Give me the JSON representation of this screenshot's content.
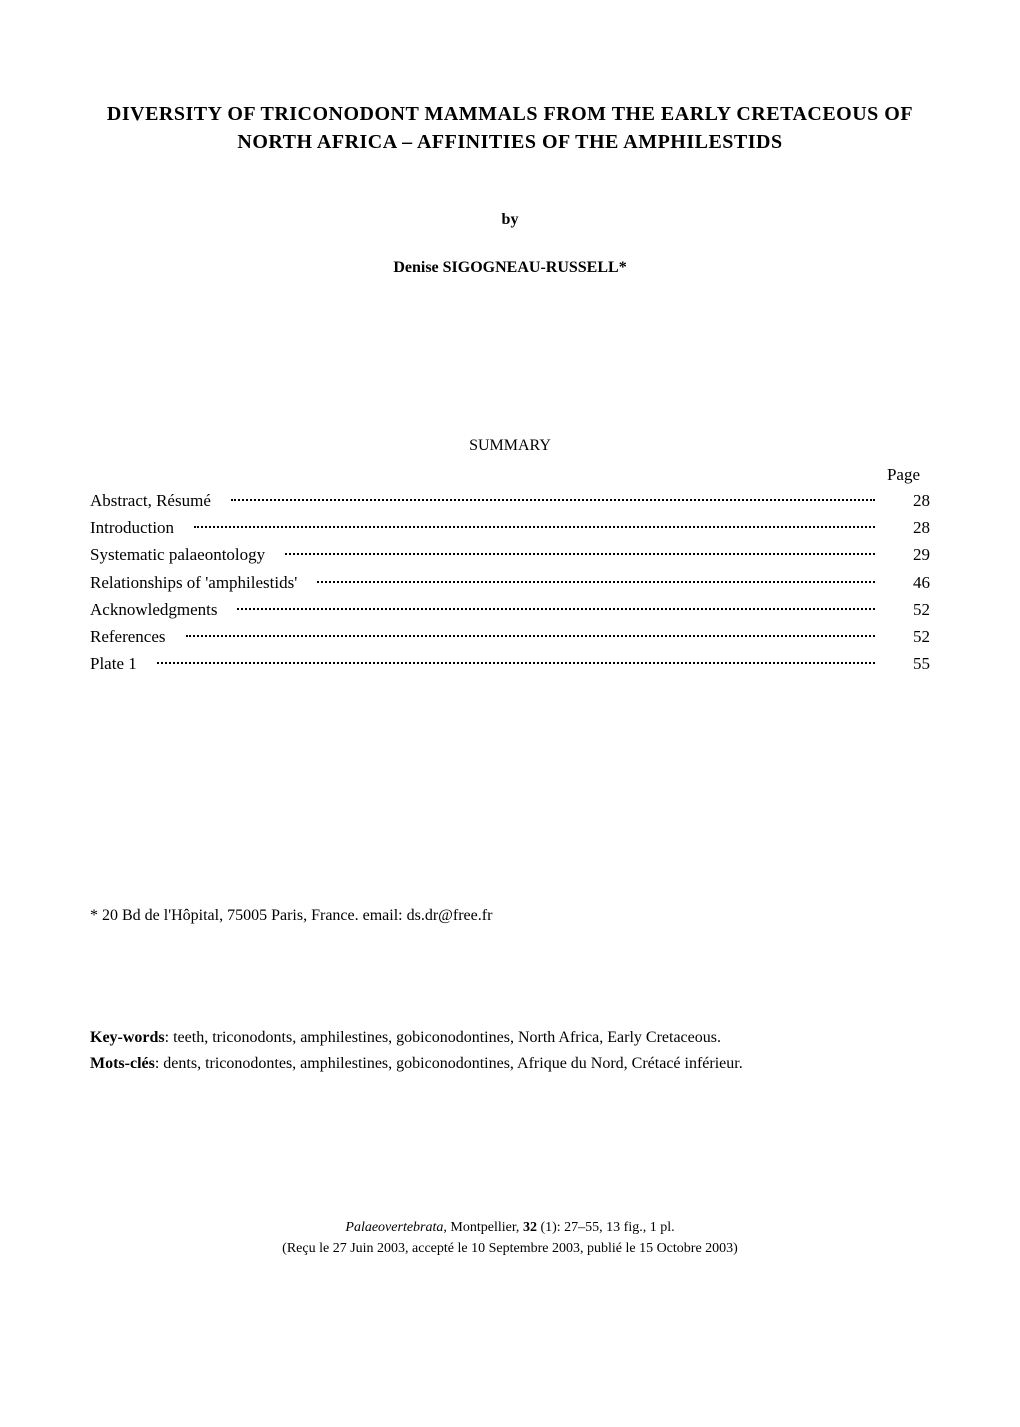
{
  "title": "DIVERSITY OF TRICONODONT MAMMALS FROM THE EARLY CRETACEOUS OF NORTH AFRICA – AFFINITIES OF THE AMPHILESTIDS",
  "by_label": "by",
  "author": "Denise SIGOGNEAU-RUSSELL*",
  "summary_heading": "SUMMARY",
  "page_label": "Page",
  "toc": [
    {
      "label": "Abstract, Résumé",
      "page": "28"
    },
    {
      "label": "Introduction",
      "page": "28"
    },
    {
      "label": "Systematic palaeontology",
      "page": "29"
    },
    {
      "label": "Relationships of 'amphilestids'",
      "page": "46"
    },
    {
      "label": "Acknowledgments",
      "page": "52"
    },
    {
      "label": "References",
      "page": "52"
    },
    {
      "label": "Plate 1",
      "page": "55"
    }
  ],
  "affiliation": "* 20 Bd de l'Hôpital, 75005 Paris, France. email: ds.dr@free.fr",
  "keywords": {
    "en_label": "Key-words",
    "en_text": ": teeth, triconodonts, amphilestines, gobiconodontines, North Africa, Early Cretaceous.",
    "fr_label": "Mots-clés",
    "fr_text": ": dents, triconodontes, amphilestines, gobiconodontines, Afrique du Nord, Crétacé inférieur."
  },
  "citation": {
    "journal": "Palaeovertebrata",
    "location": ", Montpellier, ",
    "volume": "32",
    "issue_pages": " (1): 27–55, 13 fig., 1 pl.",
    "dates": "(Reçu le 27 Juin 2003, accepté le 10 Septembre 2003, publié le 15 Octobre 2003)"
  }
}
